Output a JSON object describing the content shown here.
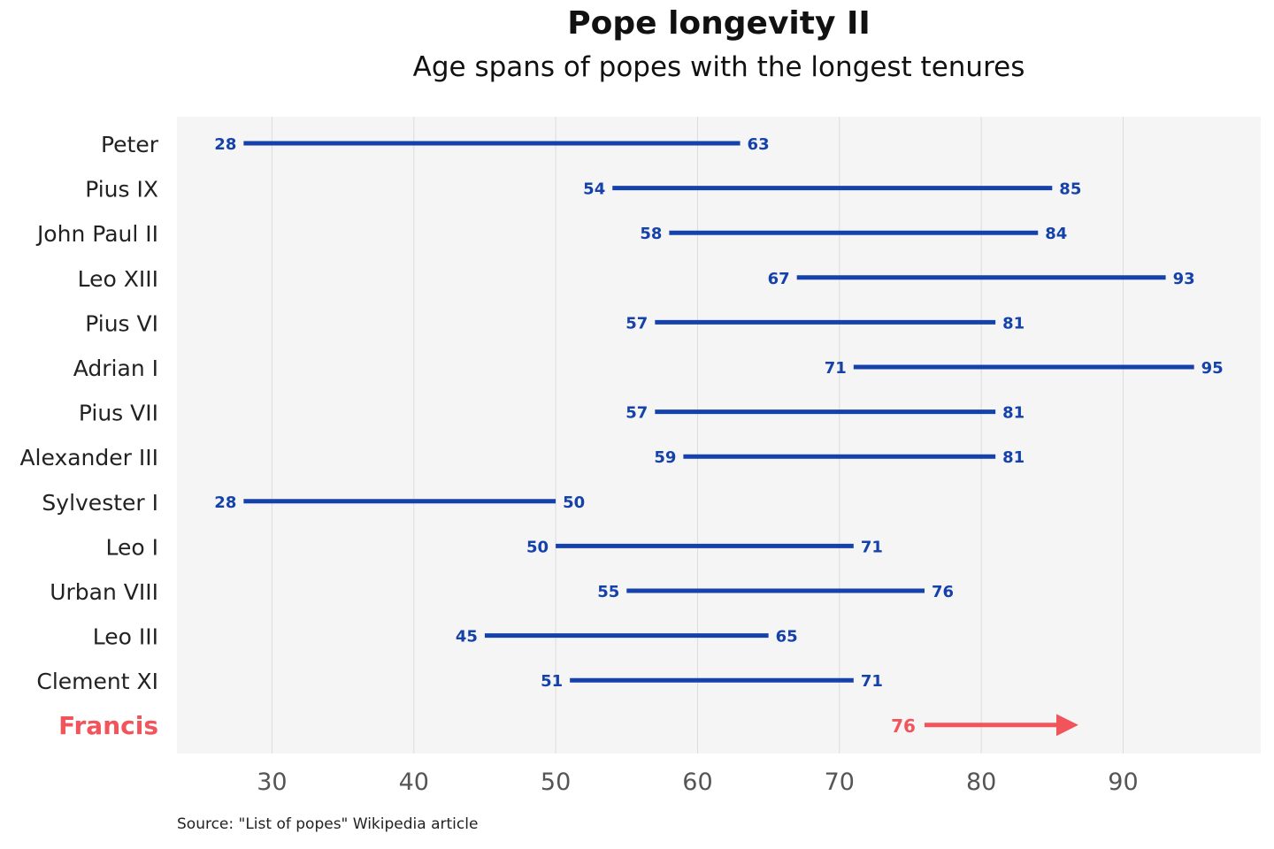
{
  "chart_data": {
    "type": "range-bar",
    "title": "Pope longevity II",
    "subtitle": "Age spans of popes with the longest tenures",
    "source": "Source: \"List of popes\" Wikipedia article",
    "xlabel": "",
    "ylabel": "",
    "xlim": [
      23.3,
      99.7
    ],
    "xticks": [
      30,
      40,
      50,
      60,
      70,
      80,
      90
    ],
    "grid": "vertical",
    "colors": {
      "range": "#1542AA",
      "highlight": "#F2545B",
      "panel": "#F5F5F6",
      "grid": "#DCDCDC",
      "label": "#222222",
      "tick": "#555555"
    },
    "series": [
      {
        "name": "Peter",
        "start": 28,
        "end": 63
      },
      {
        "name": "Pius IX",
        "start": 54,
        "end": 85
      },
      {
        "name": "John Paul II",
        "start": 58,
        "end": 84
      },
      {
        "name": "Leo XIII",
        "start": 67,
        "end": 93
      },
      {
        "name": "Pius VI",
        "start": 57,
        "end": 81
      },
      {
        "name": "Adrian I",
        "start": 71,
        "end": 95
      },
      {
        "name": "Pius VII",
        "start": 57,
        "end": 81
      },
      {
        "name": "Alexander III",
        "start": 59,
        "end": 81
      },
      {
        "name": "Sylvester I",
        "start": 28,
        "end": 50
      },
      {
        "name": "Leo I",
        "start": 50,
        "end": 71
      },
      {
        "name": "Urban VIII",
        "start": 55,
        "end": 76
      },
      {
        "name": "Leo III",
        "start": 45,
        "end": 65
      },
      {
        "name": "Clement XI",
        "start": 51,
        "end": 71
      }
    ],
    "highlight": {
      "name": "Francis",
      "start": 76,
      "end": 86.5,
      "ongoing": true
    }
  }
}
